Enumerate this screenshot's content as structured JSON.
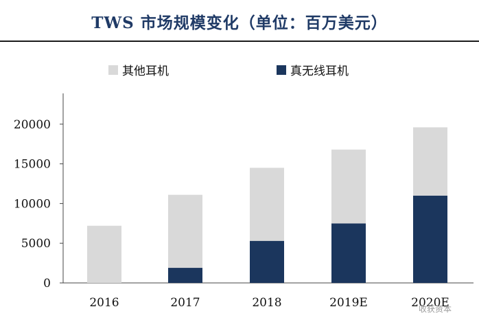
{
  "header": {
    "title": "TWS 市场规模变化（单位：百万美元）"
  },
  "watermark": {
    "text": "收获资本"
  },
  "colors": {
    "other_earphones": "#d9d9d9",
    "true_wireless": "#1b365d",
    "title": "#1f3a66"
  },
  "chart_data": {
    "type": "bar",
    "stacked": true,
    "categories": [
      "2016",
      "2017",
      "2018",
      "2019E",
      "2020E"
    ],
    "series": [
      {
        "name": "真无线耳机",
        "values": [
          0,
          1900,
          5300,
          7500,
          11000
        ]
      },
      {
        "name": "其他耳机",
        "values": [
          7200,
          9200,
          9200,
          9300,
          8600
        ]
      }
    ],
    "totals": [
      7200,
      11100,
      14500,
      16800,
      19600
    ],
    "yticks": [
      0,
      5000,
      10000,
      15000,
      20000
    ],
    "ylim": [
      0,
      24000
    ],
    "legend_placement": "top",
    "grid": false
  }
}
